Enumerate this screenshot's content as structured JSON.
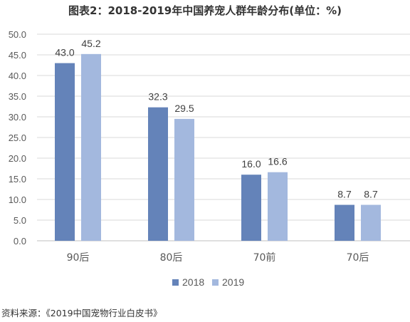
{
  "colors": {
    "series_2018": "#6483b9",
    "series_2019": "#a3b8de",
    "grid": "#d9d9d9",
    "axis": "#bfbfbf"
  },
  "chart_data": {
    "type": "bar",
    "title": "图表2：2018-2019年中国养宠人群年龄分布(单位：%)",
    "categories": [
      "90后",
      "80后",
      "70前",
      "70后"
    ],
    "series": [
      {
        "name": "2018",
        "values": [
          43.0,
          32.3,
          16.0,
          8.7
        ]
      },
      {
        "name": "2019",
        "values": [
          45.2,
          29.5,
          16.6,
          8.7
        ]
      }
    ],
    "ylim": [
      0,
      50
    ],
    "yticks": [
      "0.0",
      "5.0",
      "10.0",
      "15.0",
      "20.0",
      "25.0",
      "30.0",
      "35.0",
      "40.0",
      "45.0",
      "50.0"
    ],
    "grid": true,
    "legend_position": "bottom"
  },
  "source": "资料来源：《2019中国宠物行业白皮书》"
}
